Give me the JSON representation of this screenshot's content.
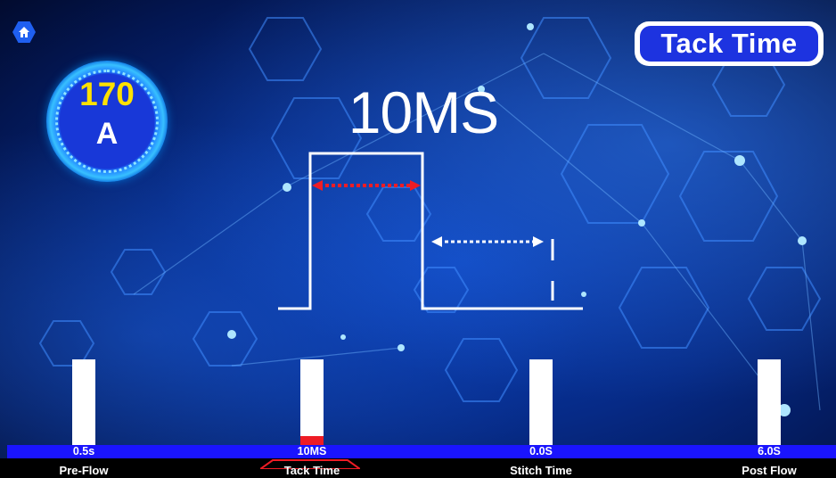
{
  "header": {
    "mode_title": "Tack Time"
  },
  "amperage": {
    "value": "170",
    "unit": "A"
  },
  "current_parameter": {
    "display_value": "10MS"
  },
  "parameters": [
    {
      "label": "Pre-Flow",
      "value": "0.5s",
      "level": 0,
      "selected": false
    },
    {
      "label": "Tack Time",
      "value": "10MS",
      "level": 0.1,
      "selected": true
    },
    {
      "label": "Stitch Time",
      "value": "0.0S",
      "level": 0,
      "selected": false
    },
    {
      "label": "Post Flow",
      "value": "6.0S",
      "level": 0,
      "selected": false
    }
  ],
  "icons": {
    "home": "home-icon"
  },
  "colors": {
    "accent": "#1d33e0",
    "amp_value": "#ffe100",
    "selected_fill": "#ee1c25",
    "value_bar": "#1a14ff",
    "tack_arrow": "#ee1c25",
    "stitch_arrow": "#ffffff"
  }
}
